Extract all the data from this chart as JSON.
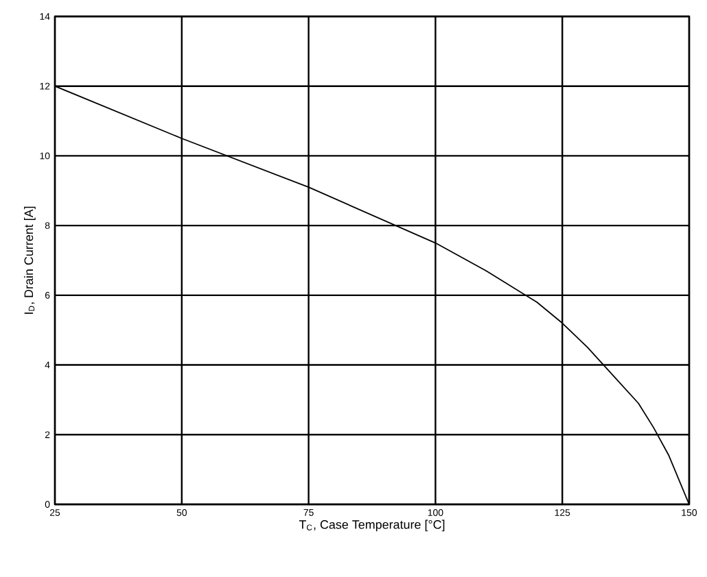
{
  "chart_data": {
    "type": "line",
    "xlabel": "T$_{C}$, Case Temperature [°C]",
    "ylabel": "I$_{D}$, Drain Current [A]",
    "x": [
      25,
      50,
      75,
      100,
      110,
      120,
      125,
      130,
      135,
      140,
      143,
      146,
      148,
      150
    ],
    "series": [
      {
        "color": "#000000",
        "values": [
          12,
          10.5,
          9.1,
          7.5,
          6.7,
          5.8,
          5.2,
          4.5,
          3.7,
          2.9,
          2.2,
          1.4,
          0.7,
          0
        ]
      }
    ],
    "xlim": [
      25,
      150
    ],
    "ylim": [
      0,
      14
    ],
    "xticks": [
      25,
      50,
      75,
      100,
      125,
      150
    ],
    "yticks": [
      0,
      2,
      4,
      6,
      8,
      10,
      12,
      14
    ],
    "grid": true,
    "marker": "none",
    "line_style": "solid"
  }
}
